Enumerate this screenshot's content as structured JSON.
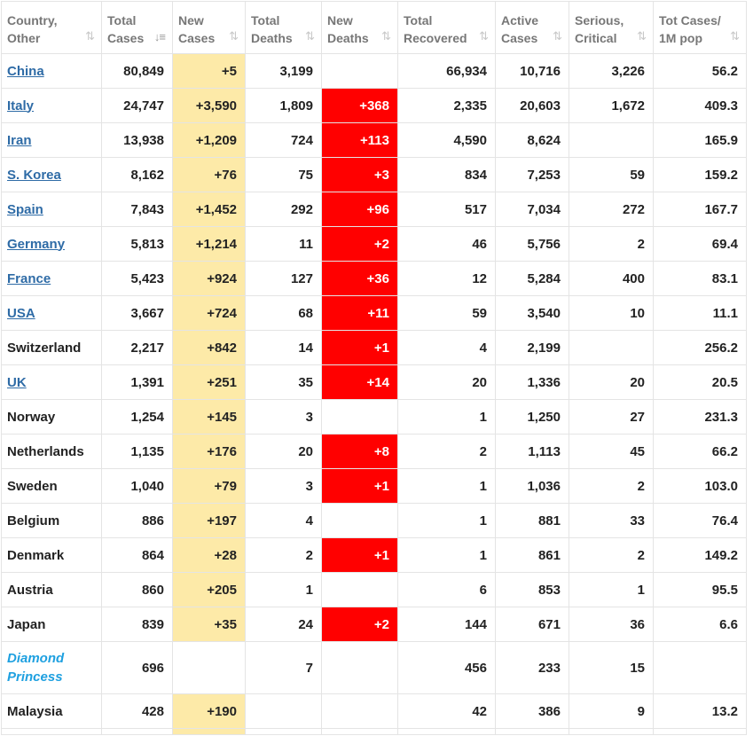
{
  "columns": [
    {
      "label": "Country,\nOther",
      "sort": "⇅",
      "sort_active": false
    },
    {
      "label": "Total\nCases",
      "sort": "↓≡",
      "sort_active": true
    },
    {
      "label": "New\nCases",
      "sort": "⇅",
      "sort_active": false
    },
    {
      "label": "Total\nDeaths",
      "sort": "⇅",
      "sort_active": false
    },
    {
      "label": "New\nDeaths",
      "sort": "⇅",
      "sort_active": false
    },
    {
      "label": "Total\nRecovered",
      "sort": "⇅",
      "sort_active": false
    },
    {
      "label": "Active\nCases",
      "sort": "⇅",
      "sort_active": false
    },
    {
      "label": "Serious,\nCritical",
      "sort": "⇅",
      "sort_active": false
    },
    {
      "label": "Tot Cases/\n1M pop",
      "sort": "⇅",
      "sort_active": false
    }
  ],
  "rows": [
    {
      "country": "China",
      "link": true,
      "total_cases": "80,849",
      "new_cases": "+5",
      "total_deaths": "3,199",
      "new_deaths": "",
      "total_recovered": "66,934",
      "active_cases": "10,716",
      "serious": "3,226",
      "per_million": "56.2"
    },
    {
      "country": "Italy",
      "link": true,
      "total_cases": "24,747",
      "new_cases": "+3,590",
      "total_deaths": "1,809",
      "new_deaths": "+368",
      "total_recovered": "2,335",
      "active_cases": "20,603",
      "serious": "1,672",
      "per_million": "409.3"
    },
    {
      "country": "Iran",
      "link": true,
      "total_cases": "13,938",
      "new_cases": "+1,209",
      "total_deaths": "724",
      "new_deaths": "+113",
      "total_recovered": "4,590",
      "active_cases": "8,624",
      "serious": "",
      "per_million": "165.9"
    },
    {
      "country": "S. Korea",
      "link": true,
      "total_cases": "8,162",
      "new_cases": "+76",
      "total_deaths": "75",
      "new_deaths": "+3",
      "total_recovered": "834",
      "active_cases": "7,253",
      "serious": "59",
      "per_million": "159.2"
    },
    {
      "country": "Spain",
      "link": true,
      "total_cases": "7,843",
      "new_cases": "+1,452",
      "total_deaths": "292",
      "new_deaths": "+96",
      "total_recovered": "517",
      "active_cases": "7,034",
      "serious": "272",
      "per_million": "167.7"
    },
    {
      "country": "Germany",
      "link": true,
      "total_cases": "5,813",
      "new_cases": "+1,214",
      "total_deaths": "11",
      "new_deaths": "+2",
      "total_recovered": "46",
      "active_cases": "5,756",
      "serious": "2",
      "per_million": "69.4"
    },
    {
      "country": "France",
      "link": true,
      "total_cases": "5,423",
      "new_cases": "+924",
      "total_deaths": "127",
      "new_deaths": "+36",
      "total_recovered": "12",
      "active_cases": "5,284",
      "serious": "400",
      "per_million": "83.1"
    },
    {
      "country": "USA",
      "link": true,
      "total_cases": "3,667",
      "new_cases": "+724",
      "total_deaths": "68",
      "new_deaths": "+11",
      "total_recovered": "59",
      "active_cases": "3,540",
      "serious": "10",
      "per_million": "11.1"
    },
    {
      "country": "Switzerland",
      "link": false,
      "total_cases": "2,217",
      "new_cases": "+842",
      "total_deaths": "14",
      "new_deaths": "+1",
      "total_recovered": "4",
      "active_cases": "2,199",
      "serious": "",
      "per_million": "256.2"
    },
    {
      "country": "UK",
      "link": true,
      "total_cases": "1,391",
      "new_cases": "+251",
      "total_deaths": "35",
      "new_deaths": "+14",
      "total_recovered": "20",
      "active_cases": "1,336",
      "serious": "20",
      "per_million": "20.5"
    },
    {
      "country": "Norway",
      "link": false,
      "total_cases": "1,254",
      "new_cases": "+145",
      "total_deaths": "3",
      "new_deaths": "",
      "total_recovered": "1",
      "active_cases": "1,250",
      "serious": "27",
      "per_million": "231.3"
    },
    {
      "country": "Netherlands",
      "link": false,
      "total_cases": "1,135",
      "new_cases": "+176",
      "total_deaths": "20",
      "new_deaths": "+8",
      "total_recovered": "2",
      "active_cases": "1,113",
      "serious": "45",
      "per_million": "66.2"
    },
    {
      "country": "Sweden",
      "link": false,
      "total_cases": "1,040",
      "new_cases": "+79",
      "total_deaths": "3",
      "new_deaths": "+1",
      "total_recovered": "1",
      "active_cases": "1,036",
      "serious": "2",
      "per_million": "103.0"
    },
    {
      "country": "Belgium",
      "link": false,
      "total_cases": "886",
      "new_cases": "+197",
      "total_deaths": "4",
      "new_deaths": "",
      "total_recovered": "1",
      "active_cases": "881",
      "serious": "33",
      "per_million": "76.4"
    },
    {
      "country": "Denmark",
      "link": false,
      "total_cases": "864",
      "new_cases": "+28",
      "total_deaths": "2",
      "new_deaths": "+1",
      "total_recovered": "1",
      "active_cases": "861",
      "serious": "2",
      "per_million": "149.2"
    },
    {
      "country": "Austria",
      "link": false,
      "total_cases": "860",
      "new_cases": "+205",
      "total_deaths": "1",
      "new_deaths": "",
      "total_recovered": "6",
      "active_cases": "853",
      "serious": "1",
      "per_million": "95.5"
    },
    {
      "country": "Japan",
      "link": false,
      "total_cases": "839",
      "new_cases": "+35",
      "total_deaths": "24",
      "new_deaths": "+2",
      "total_recovered": "144",
      "active_cases": "671",
      "serious": "36",
      "per_million": "6.6"
    },
    {
      "country": "Diamond Princess",
      "special": true,
      "link": false,
      "total_cases": "696",
      "new_cases": "",
      "total_deaths": "7",
      "new_deaths": "",
      "total_recovered": "456",
      "active_cases": "233",
      "serious": "15",
      "per_million": ""
    },
    {
      "country": "Malaysia",
      "link": false,
      "total_cases": "428",
      "new_cases": "+190",
      "total_deaths": "",
      "new_deaths": "",
      "total_recovered": "42",
      "active_cases": "386",
      "serious": "9",
      "per_million": "13.2"
    }
  ],
  "colors": {
    "new_cases_bg": "#fdeaa8",
    "new_deaths_bg": "#ff0000",
    "link": "#2e6ba6",
    "special_link": "#1ea0e0",
    "header_text": "#777777",
    "border": "#e4e4e4"
  },
  "icons": {
    "sort": "sort-arrows-icon",
    "sort_active": "sort-descending-icon"
  }
}
